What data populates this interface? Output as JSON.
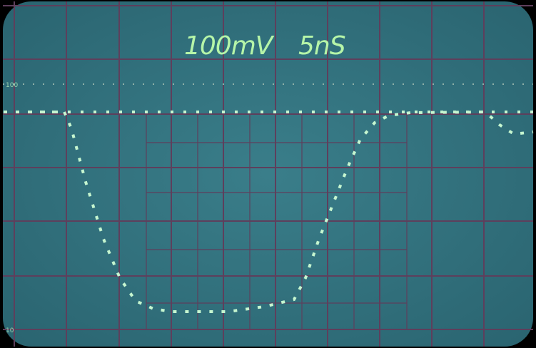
{
  "screen": {
    "volts_per_div": "100mV",
    "time_per_div": "5nS",
    "top_marker": "100",
    "bottom_marker": "10"
  }
}
